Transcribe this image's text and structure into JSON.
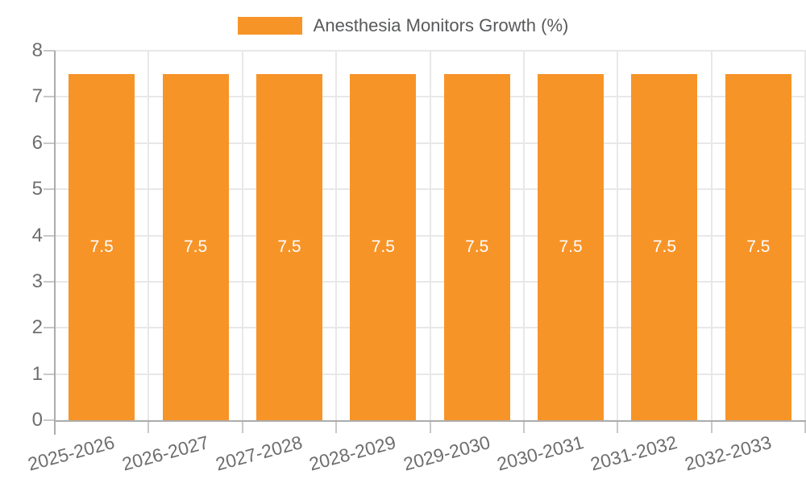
{
  "legend": {
    "label": "Anesthesia Monitors Growth (%)"
  },
  "colors": {
    "background": "#FFFFFF",
    "bar": "#F79428",
    "bar_label": "#FFFFFF",
    "axis_text": "#6E6E6E",
    "legend_text": "#58595B",
    "gridline": "#E8E8E8",
    "axis_line": "#ACACAC",
    "tick": "#C8C8C8"
  },
  "chart_data": {
    "type": "bar",
    "title": "Anesthesia Monitors Growth (%)",
    "categories": [
      "2025-2026",
      "2026-2027",
      "2027-2028",
      "2028-2029",
      "2029-2030",
      "2030-2031",
      "2031-2032",
      "2032-2033"
    ],
    "series": [
      {
        "name": "Anesthesia Monitors Growth (%)",
        "values": [
          7.5,
          7.5,
          7.5,
          7.5,
          7.5,
          7.5,
          7.5,
          7.5
        ]
      }
    ],
    "bar_value_labels": [
      "7.5",
      "7.5",
      "7.5",
      "7.5",
      "7.5",
      "7.5",
      "7.5",
      "7.5"
    ],
    "xlabel": "",
    "ylabel": "",
    "ylim": [
      0,
      8
    ],
    "yticks": [
      0,
      1,
      2,
      3,
      4,
      5,
      6,
      7,
      8
    ],
    "grid": true,
    "legend_position": "top-center",
    "x_tick_rotation_deg": -15
  }
}
